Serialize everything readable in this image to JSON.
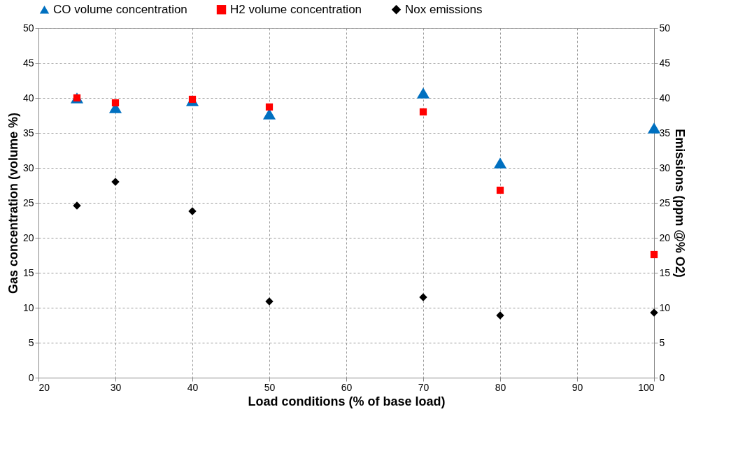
{
  "chart_data": {
    "type": "scatter",
    "xlabel": "Load conditions (% of base load)",
    "ylabel": "Gas concentration  (volume %)",
    "y2label": "Emissions (ppm @% O2)",
    "x": [
      25,
      30,
      40,
      50,
      70,
      80,
      100
    ],
    "series": [
      {
        "name": "CO volume concentration",
        "color": "#0070c0",
        "marker": "triangle",
        "values": [
          40.0,
          38.6,
          39.6,
          37.7,
          40.7,
          30.7,
          35.7
        ]
      },
      {
        "name": "H2 volume concentration",
        "color": "#ff0000",
        "marker": "square",
        "values": [
          40.0,
          39.3,
          39.8,
          38.7,
          38.0,
          26.8,
          17.6
        ]
      },
      {
        "name": "Nox emissions",
        "color": "#000000",
        "marker": "diamond",
        "axis": "y2",
        "values": [
          24.6,
          28.0,
          23.8,
          10.9,
          11.5,
          8.9,
          9.3
        ]
      }
    ],
    "xlim": [
      20,
      100
    ],
    "xticks": [
      20,
      30,
      40,
      50,
      60,
      70,
      80,
      90,
      100
    ],
    "ylim": [
      0,
      50
    ],
    "yticks": [
      0,
      5,
      10,
      15,
      20,
      25,
      30,
      35,
      40,
      45,
      50
    ],
    "y2lim": [
      0,
      50
    ],
    "y2ticks": [
      0,
      5,
      10,
      15,
      20,
      25,
      30,
      35,
      40,
      45,
      50
    ],
    "grid": true,
    "legend": "top"
  }
}
